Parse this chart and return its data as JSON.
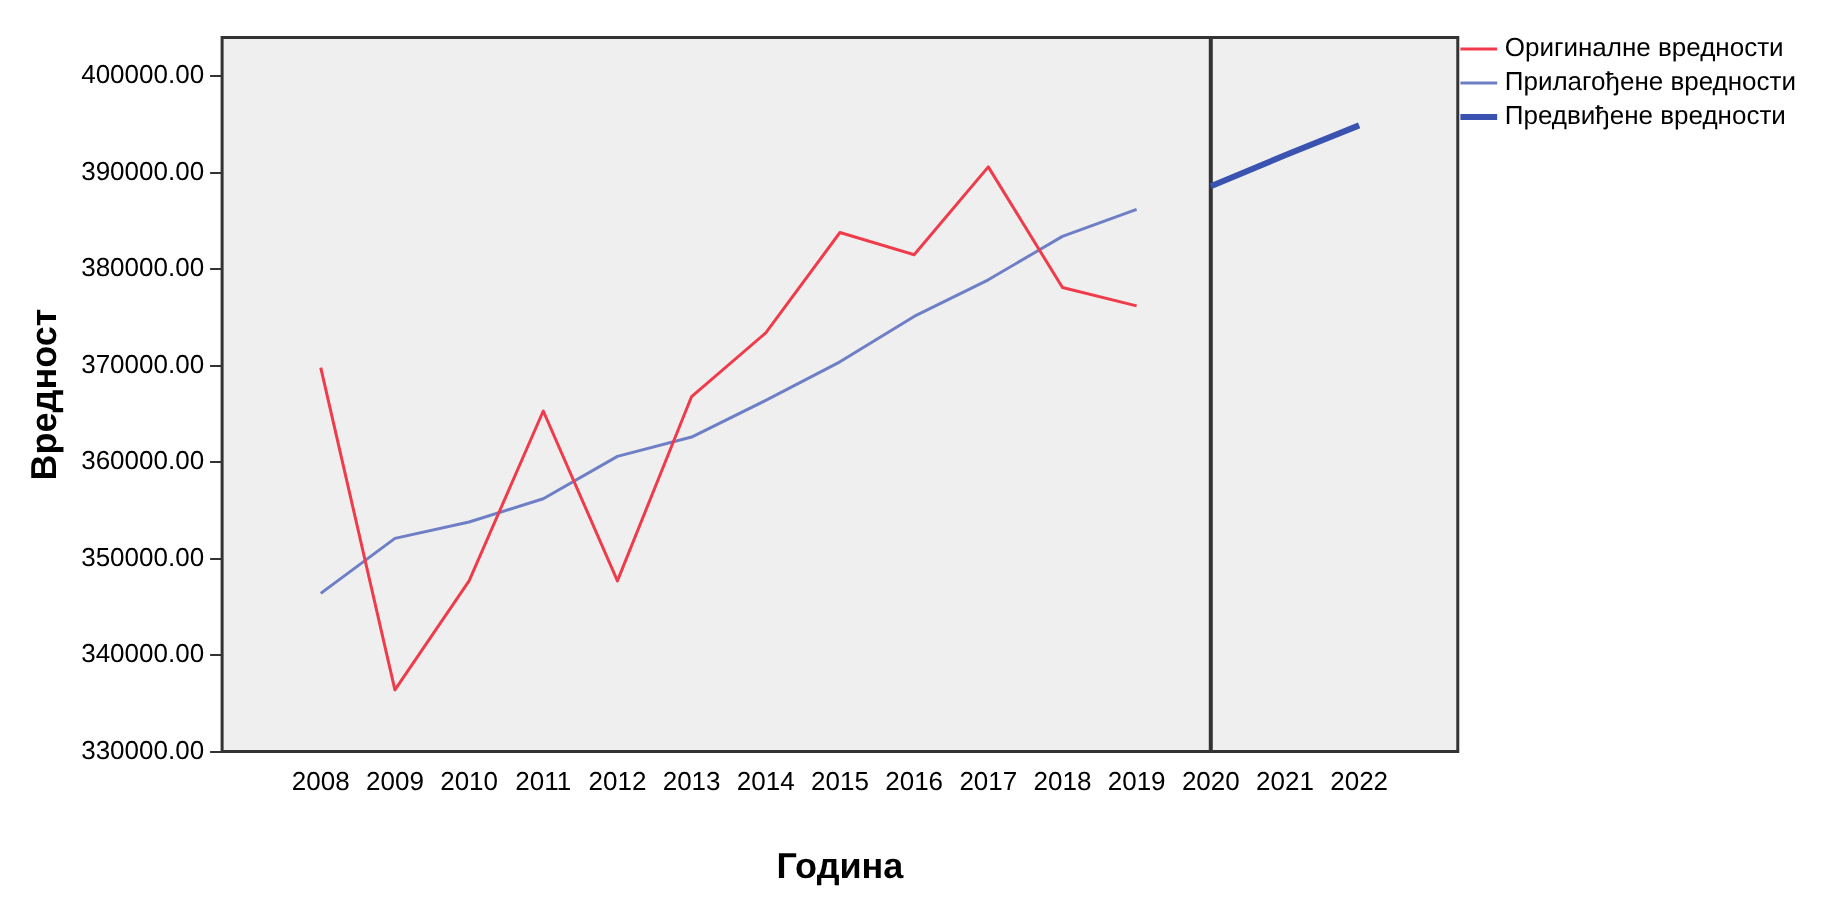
{
  "chart_data": {
    "type": "line",
    "xlabel": "Година",
    "ylabel": "Вредност",
    "categories": [
      "2008",
      "2009",
      "2010",
      "2011",
      "2012",
      "2013",
      "2014",
      "2015",
      "2016",
      "2017",
      "2018",
      "2019",
      "2020",
      "2021",
      "2022"
    ],
    "series": [
      {
        "name": "Оригиналне вредности",
        "color": "#ef3b4a",
        "values": [
          369800,
          336400,
          347700,
          365300,
          347700,
          366800,
          373400,
          383800,
          381500,
          390600,
          378100,
          376200,
          null,
          null,
          null
        ]
      },
      {
        "name": "Прилагођене вредности",
        "color": "#6f7fc6",
        "values": [
          346400,
          352100,
          353800,
          356200,
          360600,
          362600,
          366400,
          370400,
          375100,
          378900,
          383400,
          386200,
          null,
          null,
          null
        ]
      },
      {
        "name": "Предвиђене вредности",
        "color": "#3a52b0",
        "values": [
          null,
          null,
          null,
          null,
          null,
          null,
          null,
          null,
          null,
          null,
          null,
          null,
          388600,
          391800,
          394900
        ]
      }
    ],
    "ylim": [
      330000,
      404000
    ],
    "yticks": [
      {
        "value": 330000,
        "label": "330000.00"
      },
      {
        "value": 340000,
        "label": "340000.00"
      },
      {
        "value": 350000,
        "label": "350000.00"
      },
      {
        "value": 360000,
        "label": "360000.00"
      },
      {
        "value": 370000,
        "label": "370000.00"
      },
      {
        "value": 380000,
        "label": "380000.00"
      },
      {
        "value": 390000,
        "label": "390000.00"
      },
      {
        "value": 400000,
        "label": "400000.00"
      }
    ],
    "ref_lines": [
      {
        "axis": "x",
        "value": "2020",
        "color": "#333333"
      }
    ],
    "grid": false,
    "legend": "top right",
    "marker": "none",
    "line_style": "solid"
  }
}
